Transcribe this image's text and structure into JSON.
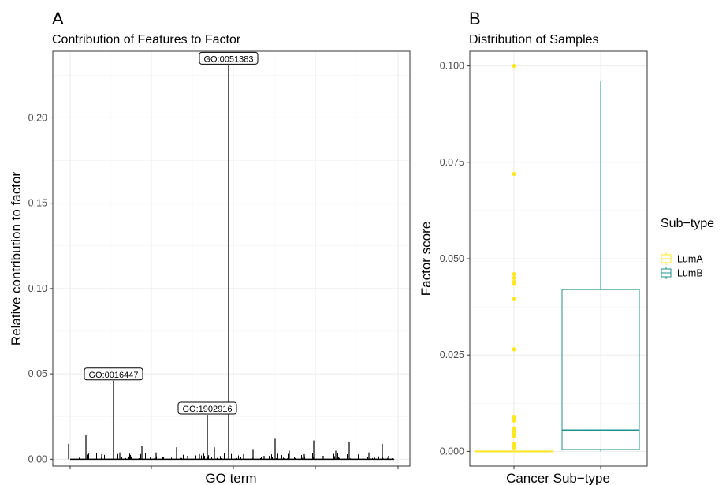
{
  "panel_a": {
    "letter": "A",
    "title": "Contribution of Features to Factor",
    "chart_data": {
      "type": "bar",
      "xlabel": "GO term",
      "ylabel": "Relative contribution to factor",
      "ylim": [
        -0.004,
        0.239
      ],
      "yticks": [
        0.0,
        0.05,
        0.1,
        0.15,
        0.2
      ],
      "ytick_labels": [
        "0.00",
        "0.05",
        "0.10",
        "0.15",
        "0.20"
      ],
      "grid": true,
      "labeled_features": [
        {
          "label": "GO:0051383",
          "value": 0.231
        },
        {
          "label": "GO:0016447",
          "value": 0.046
        },
        {
          "label": "GO:1902916",
          "value": 0.026
        }
      ],
      "notable_minor_values": [
        0.014,
        0.012,
        0.011,
        0.01,
        0.009,
        0.009,
        0.008,
        0.007,
        0.007,
        0.006,
        0.005,
        0.005,
        0.004,
        0.004,
        0.004,
        0.003,
        0.003,
        0.003,
        0.003,
        0.002,
        0.002,
        0.002,
        0.002,
        0.002,
        0.001
      ]
    }
  },
  "panel_b": {
    "letter": "B",
    "title": "Distribution of Samples",
    "chart_data": {
      "type": "box",
      "xlabel": "Cancer Sub−type",
      "ylabel": "Factor score",
      "ylim": [
        -0.0038,
        0.1038
      ],
      "yticks": [
        0.0,
        0.025,
        0.05,
        0.075,
        0.1
      ],
      "ytick_labels": [
        "0.000",
        "0.025",
        "0.050",
        "0.075",
        "0.100"
      ],
      "grid": true,
      "series": [
        {
          "name": "LumA",
          "color": "#FDE725",
          "min": 0.0,
          "q1": 0.0,
          "median": 0.0,
          "q3": 0.0,
          "max": 0.0,
          "outliers": [
            0.1,
            0.072,
            0.046,
            0.045,
            0.044,
            0.0435,
            0.0395,
            0.0265,
            0.009,
            0.0085,
            0.008,
            0.006,
            0.0055,
            0.005,
            0.0045,
            0.004,
            0.002,
            0.0015,
            0.001
          ]
        },
        {
          "name": "LumB",
          "color": "#21908C",
          "min": 0.0,
          "q1": 0.0005,
          "median": 0.0055,
          "q3": 0.042,
          "max": 0.096,
          "outliers": []
        }
      ]
    },
    "legend": {
      "title": "Sub−type",
      "entries": [
        "LumA",
        "LumB"
      ]
    }
  }
}
